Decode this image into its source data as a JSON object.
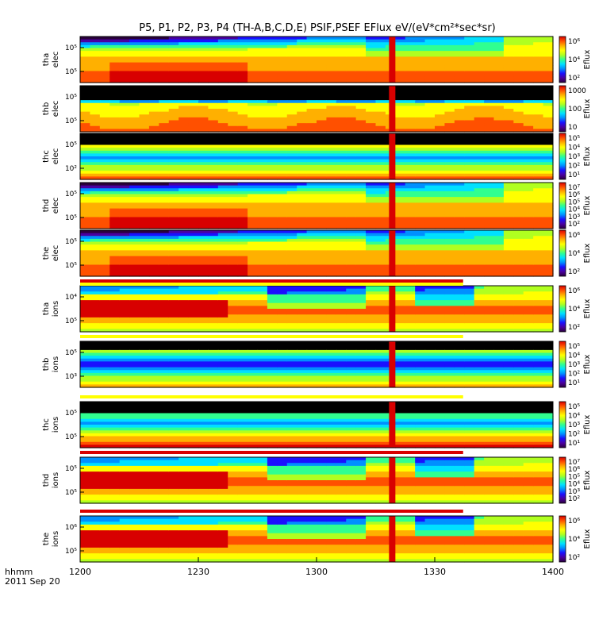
{
  "title": "P5, P1, P2, P3, P4 (TH-A,B,C,D,E) PSIF,PSEF EFlux eV/(eV*cm²*sec*sr)",
  "time_axis": {
    "label_line1": "hhmm",
    "label_line2": "2011 Sep 20",
    "ticks": [
      "1200",
      "1230",
      "1300",
      "1330",
      "1400"
    ]
  },
  "chart_data": {
    "type": "heatmap",
    "x_range": [
      "1200",
      "1400"
    ],
    "x_ticks": [
      "1200",
      "1230",
      "1300",
      "1330",
      "1400"
    ],
    "panels": [
      {
        "probe": "tha",
        "species": "elec",
        "y_ticks": [
          "10⁵",
          "10⁵"
        ],
        "colorbar_ticks": [
          "10⁶",
          "10⁴",
          "10²"
        ],
        "colorbar_label": "Eflux"
      },
      {
        "probe": "thb",
        "species": "elec",
        "y_ticks": [
          "10⁵",
          "10⁵"
        ],
        "colorbar_ticks": [
          "1000",
          "100",
          "10"
        ],
        "colorbar_label": "Eflux"
      },
      {
        "probe": "thc",
        "species": "elec",
        "y_ticks": [
          "10⁵",
          "10²"
        ],
        "colorbar_ticks": [
          "10⁵",
          "10⁴",
          "10³",
          "10²",
          "10¹"
        ],
        "colorbar_label": "Eflux"
      },
      {
        "probe": "thd",
        "species": "elec",
        "y_ticks": [
          "10⁵",
          "10⁵"
        ],
        "colorbar_ticks": [
          "10⁷",
          "10⁶",
          "10⁵",
          "10⁴",
          "10³",
          "10²"
        ],
        "colorbar_label": "Eflux"
      },
      {
        "probe": "the",
        "species": "elec",
        "y_ticks": [
          "10⁵",
          "10⁵"
        ],
        "colorbar_ticks": [
          "10⁶",
          "10⁴",
          "10²"
        ],
        "colorbar_label": "Eflux"
      },
      {
        "probe": "tha",
        "species": "ions",
        "y_ticks": [
          "10⁴",
          "10⁵"
        ],
        "colorbar_ticks": [
          "10⁶",
          "10⁴",
          "10²"
        ],
        "colorbar_label": "Eflux"
      },
      {
        "probe": "thb",
        "species": "ions",
        "y_ticks": [
          "10⁵",
          "10³"
        ],
        "colorbar_ticks": [
          "10⁵",
          "10⁴",
          "10³",
          "10²",
          "10¹"
        ],
        "colorbar_label": "Eflux"
      },
      {
        "probe": "thc",
        "species": "ions",
        "y_ticks": [
          "10⁵",
          "10⁵"
        ],
        "colorbar_ticks": [
          "10⁵",
          "10⁴",
          "10³",
          "10²",
          "10¹"
        ],
        "colorbar_label": "Eflux"
      },
      {
        "probe": "thd",
        "species": "ions",
        "y_ticks": [
          "10⁵",
          "10⁵"
        ],
        "colorbar_ticks": [
          "10⁷",
          "10⁶",
          "10⁵",
          "10⁴",
          "10³",
          "10²"
        ],
        "colorbar_label": "Eflux"
      },
      {
        "probe": "the",
        "species": "ions",
        "y_ticks": [
          "10⁶",
          "10⁵"
        ],
        "colorbar_ticks": [
          "10⁶",
          "10⁴",
          "10²"
        ],
        "colorbar_label": "Eflux"
      }
    ]
  },
  "colors": {
    "high": "#d80000",
    "mid": "#ffd400",
    "low": "#00c0ff",
    "background": "#000000"
  }
}
